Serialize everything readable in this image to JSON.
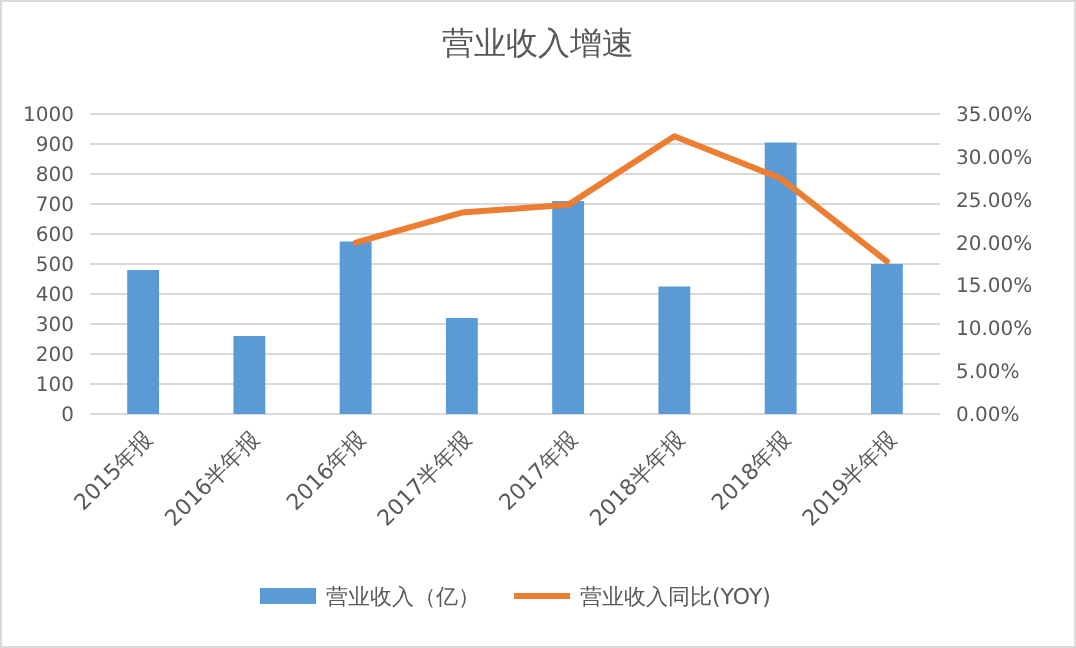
{
  "chart_data": {
    "type": "bar",
    "title": "营业收入增速",
    "categories": [
      "2015年报",
      "2016半年报",
      "2016年报",
      "2017半年报",
      "2017年报",
      "2018半年报",
      "2018年报",
      "2019半年报"
    ],
    "series": [
      {
        "name": "营业收入（亿）",
        "color": "#5b9bd5",
        "values": [
          480,
          260,
          575,
          320,
          710,
          425,
          905,
          500
        ]
      },
      {
        "name": "营业收入同比(YOY)",
        "type": "line",
        "axis": "y2",
        "color": "#ed7d31",
        "values": [
          null,
          null,
          20.0,
          23.5,
          24.4,
          32.4,
          27.5,
          17.8
        ]
      }
    ],
    "ylim": [
      0,
      1000
    ],
    "yticks": [
      0,
      100,
      200,
      300,
      400,
      500,
      600,
      700,
      800,
      900,
      1000
    ],
    "y2lim": [
      0,
      35
    ],
    "y2ticks": [
      {
        "value": 0,
        "label": "0.00%"
      },
      {
        "value": 5,
        "label": "5.00%"
      },
      {
        "value": 10,
        "label": "10.00%"
      },
      {
        "value": 15,
        "label": "15.00%"
      },
      {
        "value": 20,
        "label": "20.00%"
      },
      {
        "value": 25,
        "label": "25.00%"
      },
      {
        "value": 30,
        "label": "30.00%"
      },
      {
        "value": 35,
        "label": "35.00%"
      }
    ],
    "grid": "y",
    "legend": "bottom",
    "marker": "none",
    "line_style": "solid"
  }
}
